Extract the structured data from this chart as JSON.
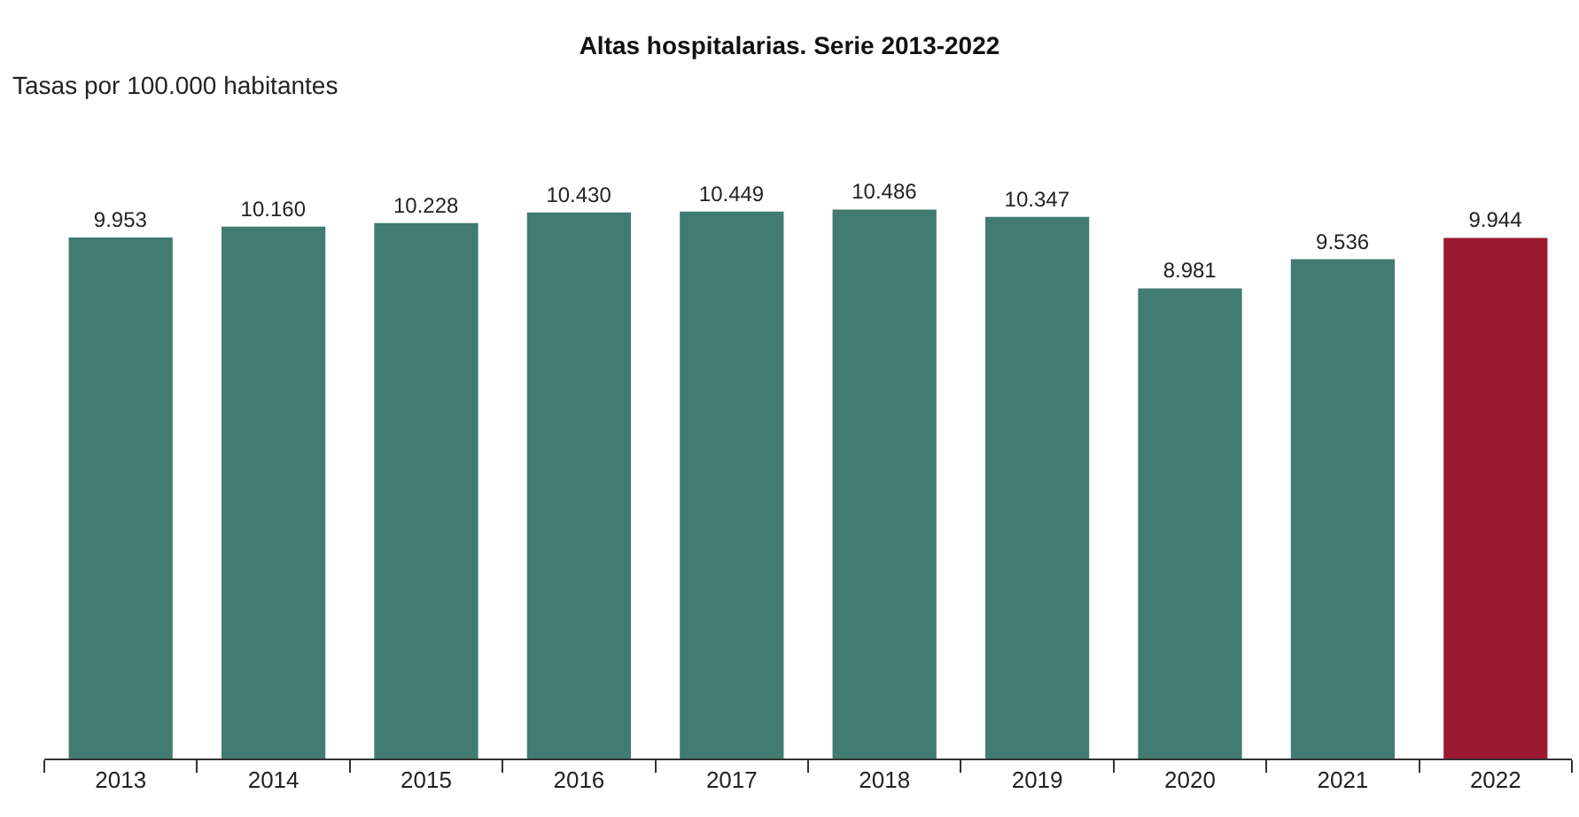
{
  "chart_data": {
    "type": "bar",
    "title": "Altas hospitalarias. Serie 2013-2022",
    "ylabel": "Tasas por 100.000 habitantes",
    "categories": [
      "2013",
      "2014",
      "2015",
      "2016",
      "2017",
      "2018",
      "2019",
      "2020",
      "2021",
      "2022"
    ],
    "values": [
      9953,
      10160,
      10228,
      10430,
      10449,
      10486,
      10347,
      8981,
      9536,
      9944
    ],
    "colors": [
      "#417b71",
      "#417b71",
      "#417b71",
      "#417b71",
      "#417b71",
      "#417b71",
      "#417b71",
      "#417b71",
      "#417b71",
      "#9b1a30"
    ],
    "value_labels": [
      "9.953",
      "10.160",
      "10.228",
      "10.430",
      "10.449",
      "10.486",
      "10.347",
      "8.981",
      "9.536",
      "9.944"
    ],
    "legend": false,
    "tick_labels": "x"
  }
}
